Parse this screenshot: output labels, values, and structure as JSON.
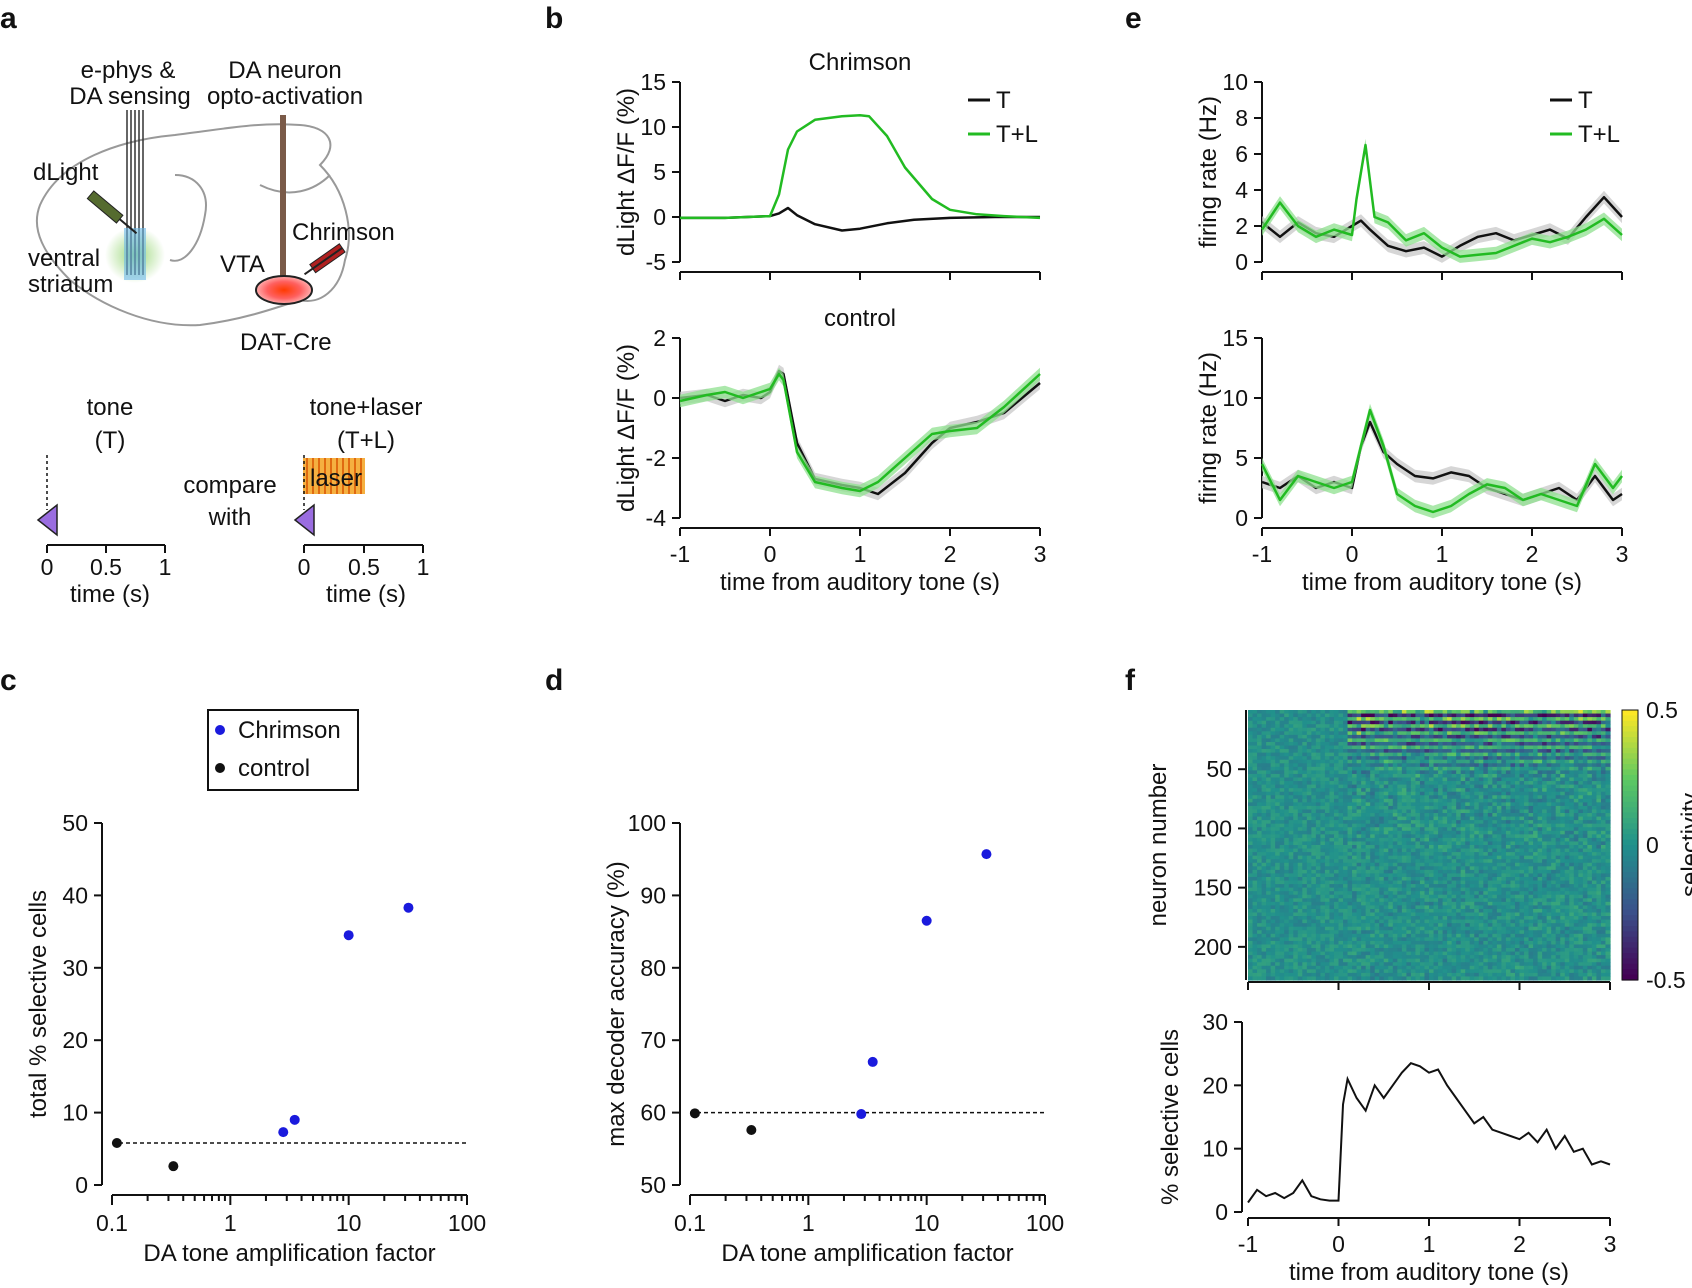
{
  "panels": {
    "a": "a",
    "b": "b",
    "c": "c",
    "d": "d",
    "e": "e",
    "f": "f"
  },
  "colors": {
    "tone": "#111111",
    "tone_laser": "#22bb22",
    "chrimson_dot": "#1a1add",
    "control_dot": "#111111",
    "sem": "#c8c8c8",
    "sem_green": "#8fe08f"
  },
  "schematic": {
    "ephys_label": "e-phys &\nDA sensing",
    "opto_label": "DA neuron\nopto-activation",
    "dlight": "dLight",
    "ventral": "ventral",
    "striatum": "striatum",
    "vta": "VTA",
    "chrimson": "Chrimson",
    "datcre": "DAT-Cre",
    "tone_title": "tone",
    "tone_abbr": "(T)",
    "tl_title": "tone+laser",
    "tl_abbr": "(T+L)",
    "compare": "compare",
    "with": "with",
    "laser": "laser",
    "ticks": [
      "0",
      "0.5",
      "1"
    ],
    "xlabel": "time (s)"
  },
  "chart_data": [
    {
      "id": "b_top",
      "type": "line",
      "title": "Chrimson",
      "ylabel": "dLight ΔF/F (%)",
      "ylim": [
        -5,
        15
      ],
      "yticks": [
        -5,
        0,
        5,
        10,
        15
      ],
      "xlim": [
        -1,
        3
      ],
      "legend": [
        "T",
        "T+L"
      ],
      "series": [
        {
          "name": "T",
          "x": [
            -1,
            -0.5,
            0,
            0.1,
            0.2,
            0.3,
            0.5,
            0.8,
            1.0,
            1.3,
            1.6,
            2.0,
            2.5,
            3.0
          ],
          "y": [
            -0.1,
            -0.1,
            0.1,
            0.4,
            1.0,
            0.2,
            -0.8,
            -1.5,
            -1.3,
            -0.7,
            -0.3,
            -0.1,
            0.0,
            0.0
          ]
        },
        {
          "name": "T+L",
          "x": [
            -1,
            -0.5,
            0,
            0.1,
            0.2,
            0.3,
            0.5,
            0.8,
            1.0,
            1.1,
            1.3,
            1.5,
            1.8,
            2.0,
            2.3,
            2.6,
            3.0
          ],
          "y": [
            -0.1,
            -0.1,
            0.1,
            2.5,
            7.5,
            9.5,
            10.8,
            11.2,
            11.3,
            11.2,
            9.0,
            5.5,
            2.0,
            0.8,
            0.3,
            0.1,
            -0.1
          ]
        }
      ]
    },
    {
      "id": "b_bot",
      "type": "line",
      "title": "control",
      "ylabel": "dLight ΔF/F (%)",
      "ylim": [
        -4,
        2
      ],
      "yticks": [
        -4,
        -2,
        0,
        2
      ],
      "xlim": [
        -1,
        3
      ],
      "xticks": [
        -1,
        0,
        1,
        2,
        3
      ],
      "xlabel": "time from auditory tone (s)",
      "series": [
        {
          "name": "T",
          "x": [
            -1,
            -0.7,
            -0.5,
            -0.3,
            -0.1,
            0,
            0.1,
            0.15,
            0.3,
            0.5,
            0.8,
            1.0,
            1.2,
            1.5,
            1.8,
            2.0,
            2.3,
            2.6,
            3.0
          ],
          "y": [
            0.0,
            0.1,
            -0.1,
            0.1,
            0.0,
            0.2,
            0.9,
            0.8,
            -1.5,
            -2.7,
            -2.9,
            -3.0,
            -3.2,
            -2.5,
            -1.5,
            -1.0,
            -0.8,
            -0.5,
            0.5
          ]
        },
        {
          "name": "T+L",
          "x": [
            -1,
            -0.7,
            -0.5,
            -0.3,
            -0.1,
            0,
            0.1,
            0.15,
            0.3,
            0.5,
            0.8,
            1.0,
            1.2,
            1.5,
            1.8,
            2.0,
            2.3,
            2.6,
            3.0
          ],
          "y": [
            -0.1,
            0.1,
            0.2,
            0.0,
            0.2,
            0.3,
            0.8,
            0.6,
            -1.8,
            -2.8,
            -3.0,
            -3.1,
            -2.8,
            -2.0,
            -1.2,
            -1.1,
            -1.0,
            -0.3,
            0.8
          ]
        }
      ]
    },
    {
      "id": "e_top",
      "type": "line",
      "ylabel": "firing rate (Hz)",
      "ylim": [
        0,
        10
      ],
      "yticks": [
        0,
        2,
        4,
        6,
        8,
        10
      ],
      "xlim": [
        -1,
        3
      ],
      "legend": [
        "T",
        "T+L"
      ],
      "series": [
        {
          "name": "T",
          "x": [
            -1,
            -0.8,
            -0.6,
            -0.4,
            -0.2,
            0,
            0.1,
            0.2,
            0.4,
            0.6,
            0.8,
            1.0,
            1.2,
            1.4,
            1.6,
            1.8,
            2.0,
            2.2,
            2.4,
            2.6,
            2.8,
            3.0
          ],
          "y": [
            2.2,
            1.4,
            2.2,
            1.6,
            1.4,
            2.0,
            2.3,
            1.8,
            0.9,
            0.6,
            0.8,
            0.3,
            0.9,
            1.4,
            1.6,
            1.2,
            1.5,
            1.8,
            1.3,
            2.5,
            3.6,
            2.5
          ]
        },
        {
          "name": "T+L",
          "x": [
            -1,
            -0.8,
            -0.6,
            -0.4,
            -0.2,
            0,
            0.05,
            0.15,
            0.25,
            0.4,
            0.6,
            0.8,
            1.0,
            1.2,
            1.4,
            1.6,
            1.8,
            2.0,
            2.2,
            2.4,
            2.6,
            2.8,
            3.0
          ],
          "y": [
            1.8,
            3.3,
            2.0,
            1.4,
            1.8,
            1.5,
            3.5,
            6.5,
            2.5,
            2.2,
            1.2,
            1.6,
            0.8,
            0.3,
            0.4,
            0.5,
            0.9,
            1.3,
            1.1,
            1.4,
            1.8,
            2.4,
            1.5
          ]
        }
      ]
    },
    {
      "id": "e_bot",
      "type": "line",
      "ylabel": "firing rate (Hz)",
      "ylim": [
        0,
        15
      ],
      "yticks": [
        0,
        5,
        10,
        15
      ],
      "xlim": [
        -1,
        3
      ],
      "xticks": [
        -1,
        0,
        1,
        2,
        3
      ],
      "xlabel": "time from auditory tone (s)",
      "series": [
        {
          "name": "T",
          "x": [
            -1,
            -0.8,
            -0.6,
            -0.4,
            -0.2,
            0,
            0.1,
            0.2,
            0.35,
            0.5,
            0.7,
            0.9,
            1.1,
            1.3,
            1.5,
            1.7,
            1.9,
            2.1,
            2.3,
            2.5,
            2.7,
            2.9,
            3.0
          ],
          "y": [
            3.0,
            2.5,
            3.5,
            2.5,
            3.0,
            2.5,
            6.0,
            8.0,
            5.5,
            4.5,
            3.5,
            3.3,
            3.8,
            3.5,
            2.5,
            2.0,
            1.5,
            2.0,
            2.5,
            1.5,
            3.5,
            1.5,
            2.0
          ]
        },
        {
          "name": "T+L",
          "x": [
            -1,
            -0.8,
            -0.6,
            -0.4,
            -0.2,
            0,
            0.1,
            0.2,
            0.35,
            0.5,
            0.7,
            0.9,
            1.1,
            1.3,
            1.5,
            1.7,
            1.9,
            2.1,
            2.3,
            2.5,
            2.7,
            2.9,
            3.0
          ],
          "y": [
            4.5,
            1.5,
            3.5,
            3.0,
            2.5,
            3.0,
            6.0,
            9.0,
            6.0,
            2.0,
            1.0,
            0.5,
            1.0,
            2.0,
            2.8,
            2.5,
            1.5,
            2.0,
            1.5,
            1.0,
            4.5,
            2.5,
            3.5
          ]
        }
      ]
    },
    {
      "id": "c",
      "type": "scatter",
      "legend": [
        "Chrimson",
        "control"
      ],
      "ylabel": "total % selective cells",
      "xlabel": "DA tone amplification factor",
      "xscale": "log",
      "xlim": [
        0.1,
        100
      ],
      "xticks": [
        "0.1",
        "1",
        "10",
        "100"
      ],
      "ylim": [
        0,
        50
      ],
      "yticks": [
        0,
        10,
        20,
        30,
        40,
        50
      ],
      "baseline": 5.8,
      "series": [
        {
          "name": "Chrimson",
          "x": [
            2.8,
            3.5,
            10,
            32
          ],
          "y": [
            7.3,
            9.0,
            34.5,
            38.3
          ]
        },
        {
          "name": "control",
          "x": [
            0.11,
            0.33
          ],
          "y": [
            5.8,
            2.6
          ]
        }
      ]
    },
    {
      "id": "d",
      "type": "scatter",
      "ylabel": "max decoder accuracy (%)",
      "xlabel": "DA tone amplification factor",
      "xscale": "log",
      "xlim": [
        0.1,
        100
      ],
      "xticks": [
        "0.1",
        "1",
        "10",
        "100"
      ],
      "ylim": [
        50,
        100
      ],
      "yticks": [
        50,
        60,
        70,
        80,
        90,
        100
      ],
      "baseline": 60,
      "series": [
        {
          "name": "Chrimson",
          "x": [
            2.8,
            3.5,
            10,
            32
          ],
          "y": [
            59.8,
            67,
            86.5,
            95.7
          ]
        },
        {
          "name": "control",
          "x": [
            0.11,
            0.33
          ],
          "y": [
            59.9,
            57.6
          ]
        }
      ]
    },
    {
      "id": "f_heat",
      "type": "heatmap",
      "ylabel": "neuron number",
      "yticks": [
        50,
        100,
        150,
        200
      ],
      "nrows": 228,
      "xlim": [
        -1,
        3
      ],
      "colorbar_label": "selectivity",
      "colorbar_ticks": [
        "0.5",
        "0",
        "-0.5"
      ]
    },
    {
      "id": "f_line",
      "type": "line",
      "ylabel": "% selective cells",
      "ylim": [
        0,
        30
      ],
      "yticks": [
        0,
        10,
        20,
        30
      ],
      "xlim": [
        -1,
        3
      ],
      "xticks": [
        -1,
        0,
        1,
        2,
        3
      ],
      "xlabel": "time from auditory tone (s)",
      "series": [
        {
          "name": "selective",
          "x": [
            -1,
            -0.9,
            -0.8,
            -0.7,
            -0.6,
            -0.5,
            -0.4,
            -0.3,
            -0.2,
            -0.1,
            0,
            0.05,
            0.1,
            0.2,
            0.3,
            0.4,
            0.5,
            0.6,
            0.7,
            0.8,
            0.9,
            1.0,
            1.1,
            1.2,
            1.3,
            1.4,
            1.5,
            1.6,
            1.7,
            1.8,
            1.9,
            2.0,
            2.1,
            2.2,
            2.3,
            2.4,
            2.5,
            2.6,
            2.7,
            2.8,
            2.9,
            3.0
          ],
          "y": [
            1.5,
            3.5,
            2.5,
            3.0,
            2.2,
            3.0,
            5.0,
            2.5,
            2.0,
            1.8,
            1.8,
            17,
            21,
            18,
            16,
            20,
            18,
            20,
            22,
            23.5,
            23,
            22,
            22.5,
            20,
            18,
            16,
            14,
            15,
            13,
            12.5,
            12,
            11.5,
            12.5,
            11,
            13,
            10,
            12,
            9.5,
            10,
            7.5,
            8,
            7.5
          ]
        }
      ]
    }
  ]
}
